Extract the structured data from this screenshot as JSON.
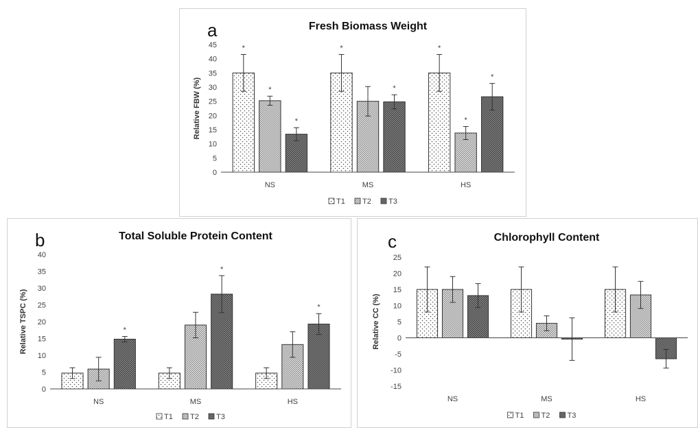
{
  "chart_data": [
    {
      "type": "bar",
      "panel_letter": "a",
      "title": "Fresh Biomass Weight",
      "xlabel": "",
      "ylabel": "Relative FBW (%)",
      "ylim": [
        0,
        45
      ],
      "yticks": [
        "0",
        "5",
        "10",
        "15",
        "20",
        "25",
        "30",
        "35",
        "40",
        "45"
      ],
      "categories": [
        "NS",
        "MS",
        "HS"
      ],
      "series": [
        {
          "name": "T1",
          "values": [
            35,
            35,
            35
          ],
          "errors": [
            6.5,
            6.5,
            6.5
          ],
          "significant": [
            true,
            true,
            true
          ]
        },
        {
          "name": "T2",
          "values": [
            25.2,
            25,
            13.8
          ],
          "errors": [
            1.6,
            5.2,
            2.3
          ],
          "significant": [
            true,
            false,
            true
          ]
        },
        {
          "name": "T3",
          "values": [
            13.4,
            24.8,
            26.6
          ],
          "errors": [
            2.3,
            2.5,
            4.7
          ],
          "significant": [
            true,
            true,
            true
          ]
        }
      ],
      "significance_marker": "*",
      "grid": false,
      "legend_position": "bottom"
    },
    {
      "type": "bar",
      "panel_letter": "b",
      "title": "Total Soluble Protein Content",
      "xlabel": "",
      "ylabel": "Relative TSPC (%)",
      "ylim": [
        0,
        40
      ],
      "yticks": [
        "0",
        "5",
        "10",
        "15",
        "20",
        "25",
        "30",
        "35",
        "40"
      ],
      "categories": [
        "NS",
        "MS",
        "HS"
      ],
      "series": [
        {
          "name": "T1",
          "values": [
            4.7,
            4.7,
            4.7
          ],
          "errors": [
            1.6,
            1.6,
            1.6
          ],
          "significant": [
            false,
            false,
            false
          ]
        },
        {
          "name": "T2",
          "values": [
            5.9,
            19,
            13.2
          ],
          "errors": [
            3.5,
            3.8,
            3.8
          ],
          "significant": [
            false,
            false,
            false
          ]
        },
        {
          "name": "T3",
          "values": [
            14.8,
            28.2,
            19.3
          ],
          "errors": [
            0.8,
            5.5,
            3.1
          ],
          "significant": [
            true,
            true,
            true
          ]
        }
      ],
      "significance_marker": "*",
      "grid": false,
      "legend_position": "bottom"
    },
    {
      "type": "bar",
      "panel_letter": "c",
      "title": "Chlorophyll Content",
      "xlabel": "",
      "ylabel": "Relative CC (%)",
      "ylim": [
        -15,
        25
      ],
      "yticks": [
        "-15",
        "-10",
        "-5",
        "0",
        "5",
        "10",
        "15",
        "20",
        "25"
      ],
      "categories": [
        "NS",
        "MS",
        "HS"
      ],
      "series": [
        {
          "name": "T1",
          "values": [
            15,
            15,
            15
          ],
          "errors": [
            7,
            7,
            7
          ],
          "significant": [
            false,
            false,
            false
          ]
        },
        {
          "name": "T2",
          "values": [
            15,
            4.5,
            13.3
          ],
          "errors": [
            4,
            2.3,
            4.2
          ],
          "significant": [
            false,
            false,
            false
          ]
        },
        {
          "name": "T3",
          "values": [
            13.1,
            -0.4,
            -6.5
          ],
          "errors": [
            3.7,
            6.6,
            2.9
          ],
          "significant": [
            false,
            false,
            false
          ]
        }
      ],
      "significance_marker": "*",
      "grid": false,
      "legend_position": "bottom"
    }
  ]
}
